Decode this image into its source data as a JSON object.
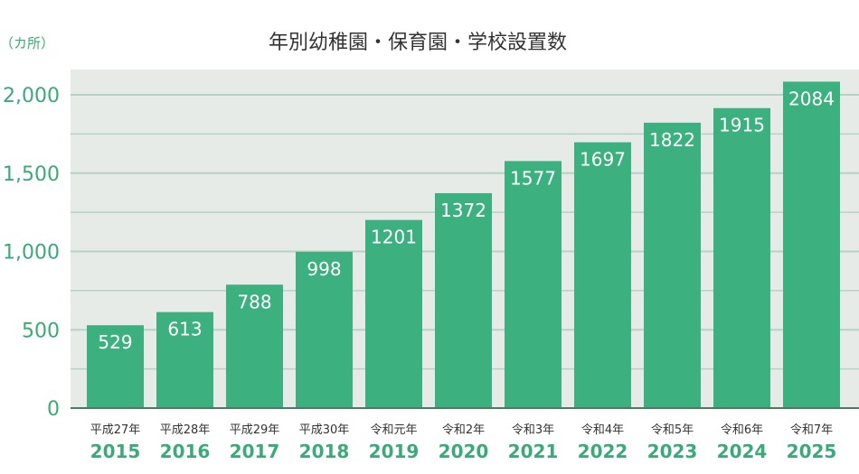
{
  "chart_data": {
    "type": "bar",
    "title": "年別幼稚園・保育園・学校設置数",
    "ylabel": "（カ所）",
    "ylim": [
      0,
      2100
    ],
    "yticks": [
      "0",
      "500",
      "1,000",
      "1,500",
      "2,000"
    ],
    "ytick_values": [
      0,
      500,
      1000,
      1500,
      2000
    ],
    "grid": true,
    "categories_era": [
      "平成27年",
      "平成28年",
      "平成29年",
      "平成30年",
      "令和元年",
      "令和2年",
      "令和3年",
      "令和4年",
      "令和5年",
      "令和6年",
      "令和7年"
    ],
    "categories": [
      "2015",
      "2016",
      "2017",
      "2018",
      "2019",
      "2020",
      "2021",
      "2022",
      "2023",
      "2024",
      "2025"
    ],
    "values": [
      529,
      613,
      788,
      998,
      1201,
      1372,
      1577,
      1697,
      1822,
      1915,
      2084
    ],
    "colors": {
      "bar": "#3db080",
      "plot_bg": "#e6ebe8",
      "grid": "#b5d3c4",
      "accent": "#3aaa78",
      "axis": "#4d7a63"
    }
  }
}
